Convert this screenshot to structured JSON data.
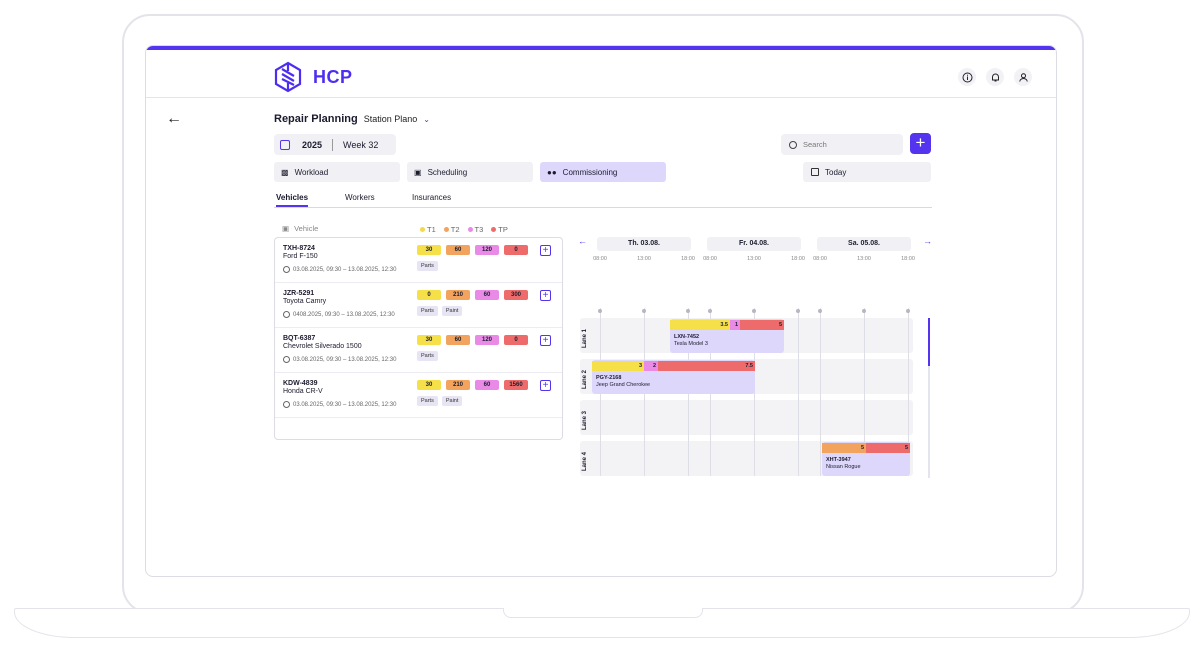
{
  "brand": {
    "logo_text": "HCP",
    "accent": "#5534f0"
  },
  "header": {
    "icons": [
      "info-icon",
      "bell-icon",
      "user-icon"
    ]
  },
  "page": {
    "title": "Repair Planning",
    "station": "Station Plano"
  },
  "date": {
    "year": "2025",
    "week": "Week 32"
  },
  "search": {
    "placeholder": "Search"
  },
  "views": [
    {
      "label": "Workload",
      "icon": "bar-chart-icon"
    },
    {
      "label": "Scheduling",
      "icon": "clipboard-icon"
    },
    {
      "label": "Commissioning",
      "icon": "users-icon",
      "active": true
    }
  ],
  "today_label": "Today",
  "subtabs": [
    "Vehicles",
    "Workers",
    "Insurances"
  ],
  "vehicle_header": "Vehicle",
  "legend": [
    {
      "label": "T1",
      "color": "#f5d94a"
    },
    {
      "label": "T2",
      "color": "#f2a35e"
    },
    {
      "label": "T3",
      "color": "#e98be6"
    },
    {
      "label": "TP",
      "color": "#ee6b6b"
    }
  ],
  "vehicles": [
    {
      "plate": "TXH-8724",
      "model": "Ford F-150",
      "dates": "03.08.2025, 09:30 – 13.08.2025, 12:30",
      "t1": "30",
      "t2": "60",
      "t3": "120",
      "tp": "0",
      "tags": [
        "Parts"
      ]
    },
    {
      "plate": "JZR-5291",
      "model": "Toyota Camry",
      "dates": "0408.2025, 09:30 – 13.08.2025, 12:30",
      "t1": "0",
      "t2": "210",
      "t3": "60",
      "tp": "300",
      "tags": [
        "Parts",
        "Paint"
      ]
    },
    {
      "plate": "BQT-6387",
      "model": "Chevrolet Silverado 1500",
      "dates": "03.08.2025, 09:30 – 13.08.2025, 12:30",
      "t1": "30",
      "t2": "60",
      "t3": "120",
      "tp": "0",
      "tags": [
        "Parts"
      ]
    },
    {
      "plate": "KDW-4839",
      "model": "Honda CR-V",
      "dates": "03.08.2025, 09:30 – 13.08.2025, 12:30",
      "t1": "30",
      "t2": "210",
      "t3": "60",
      "tp": "1560",
      "tags": [
        "Parts",
        "Paint"
      ]
    }
  ],
  "gantt": {
    "days": [
      "Th. 03.08.",
      "Fr. 04.08.",
      "Sa. 05.08."
    ],
    "hours": [
      "08:00",
      "13:00",
      "18:00",
      "08:00",
      "13:00",
      "18:00",
      "08:00",
      "13:00",
      "18:00"
    ],
    "lanes": [
      "Lane 1",
      "Lane 2",
      "Lane 3",
      "Lane 4"
    ],
    "jobs": [
      {
        "plate": "LXN-7452",
        "model": "Tesla Model 3",
        "segments": [
          "3.5",
          "1",
          "5"
        ]
      },
      {
        "plate": "PGY-2168",
        "model": "Jeep Grand Cherokee",
        "segments": [
          "3",
          "2",
          "7.5"
        ]
      },
      {
        "plate": "XHT-3947",
        "model": "Nissan Rogue",
        "segments": [
          "5",
          "5"
        ]
      }
    ]
  }
}
